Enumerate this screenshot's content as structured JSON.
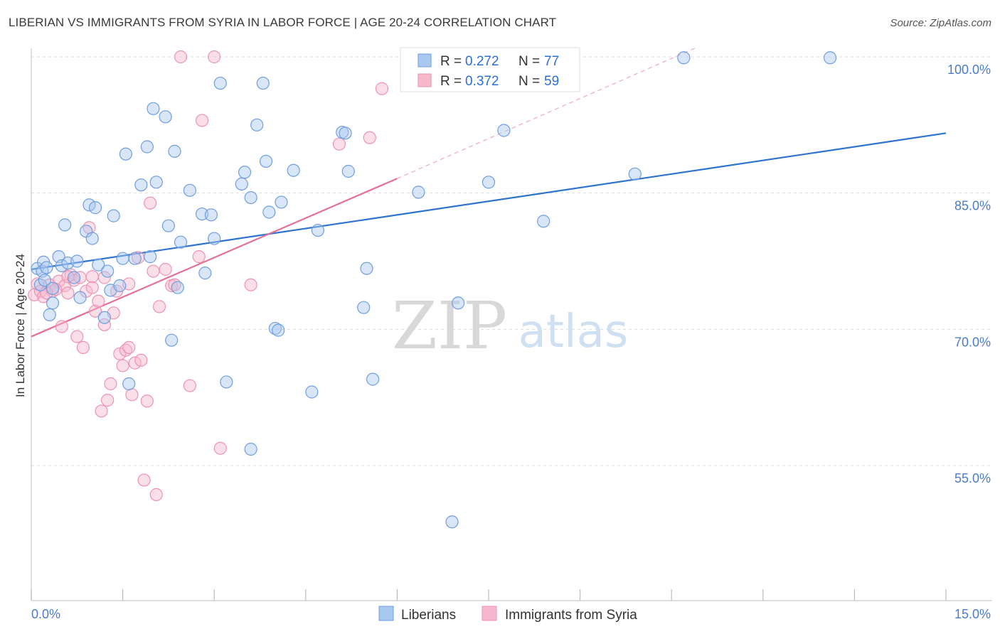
{
  "title": "LIBERIAN VS IMMIGRANTS FROM SYRIA IN LABOR FORCE | AGE 20-24 CORRELATION CHART",
  "source": "Source: ZipAtlas.com",
  "watermark": {
    "zip": "ZIP",
    "atlas": "atlas"
  },
  "colors": {
    "liberians_fill": "#a9c8f0",
    "liberians_stroke": "#6f9ee0",
    "liberians_line": "#2f73d0",
    "syria_fill": "#f6b9cc",
    "syria_stroke": "#ee93b0",
    "syria_line": "#e56f98",
    "tick_label": "#4a7cc7",
    "grid": "#dcdcdc"
  },
  "legend": {
    "r_label": "R =",
    "n_label": "N =",
    "rows": [
      {
        "r": "0.272",
        "n": "77"
      },
      {
        "r": "0.372",
        "n": "59"
      }
    ]
  },
  "bottom_legend": [
    "Liberians",
    "Immigrants from Syria"
  ],
  "chart_data": {
    "type": "scatter",
    "title": "LIBERIAN VS IMMIGRANTS FROM SYRIA IN LABOR FORCE | AGE 20-24 CORRELATION CHART",
    "xlabel": "",
    "ylabel": "In Labor Force | Age 20-24",
    "xlim": [
      0,
      15
    ],
    "ylim": [
      39.5,
      101.5
    ],
    "x_tick_labels": [
      "0.0%",
      "15.0%"
    ],
    "y_ticks": [
      55,
      70,
      85,
      100
    ],
    "y_tick_labels": [
      "55.0%",
      "70.0%",
      "85.0%",
      "100.0%"
    ],
    "grid": "horizontal dashed",
    "legend_position": "top-center",
    "series": [
      {
        "name": "Liberians",
        "r": 0.272,
        "n": 77,
        "trend": {
          "x": [
            0,
            15
          ],
          "y": [
            76.6,
            91.6
          ]
        },
        "points": [
          [
            0.1,
            76.7
          ],
          [
            0.15,
            74.9
          ],
          [
            0.18,
            76.4
          ],
          [
            0.2,
            77.4
          ],
          [
            0.25,
            76.8
          ],
          [
            0.3,
            71.6
          ],
          [
            0.35,
            72.9
          ],
          [
            0.45,
            78.0
          ],
          [
            0.5,
            77.0
          ],
          [
            0.55,
            81.5
          ],
          [
            0.6,
            77.3
          ],
          [
            0.7,
            75.7
          ],
          [
            0.75,
            77.5
          ],
          [
            0.8,
            73.5
          ],
          [
            0.9,
            80.8
          ],
          [
            0.95,
            83.7
          ],
          [
            1.0,
            80.0
          ],
          [
            1.05,
            83.4
          ],
          [
            1.1,
            77.1
          ],
          [
            1.2,
            71.3
          ],
          [
            1.25,
            76.4
          ],
          [
            1.3,
            74.3
          ],
          [
            1.35,
            82.5
          ],
          [
            1.45,
            74.8
          ],
          [
            1.5,
            77.8
          ],
          [
            1.55,
            89.3
          ],
          [
            1.6,
            64.0
          ],
          [
            1.7,
            77.8
          ],
          [
            1.8,
            85.9
          ],
          [
            1.9,
            90.1
          ],
          [
            1.95,
            78.0
          ],
          [
            2.0,
            94.3
          ],
          [
            2.05,
            86.2
          ],
          [
            2.2,
            93.4
          ],
          [
            2.25,
            81.4
          ],
          [
            2.3,
            68.8
          ],
          [
            2.35,
            89.6
          ],
          [
            2.4,
            74.6
          ],
          [
            2.45,
            79.6
          ],
          [
            2.6,
            85.3
          ],
          [
            2.8,
            82.7
          ],
          [
            2.85,
            76.2
          ],
          [
            2.95,
            82.6
          ],
          [
            3.0,
            80.0
          ],
          [
            3.1,
            97.1
          ],
          [
            3.2,
            64.2
          ],
          [
            3.45,
            86.0
          ],
          [
            3.5,
            87.3
          ],
          [
            3.6,
            84.5
          ],
          [
            3.7,
            92.5
          ],
          [
            3.8,
            97.1
          ],
          [
            3.85,
            88.5
          ],
          [
            3.9,
            82.9
          ],
          [
            4.0,
            70.1
          ],
          [
            4.05,
            69.9
          ],
          [
            4.1,
            84.0
          ],
          [
            4.3,
            87.5
          ],
          [
            4.6,
            63.1
          ],
          [
            4.7,
            80.9
          ],
          [
            5.1,
            91.7
          ],
          [
            5.15,
            91.6
          ],
          [
            5.2,
            87.4
          ],
          [
            5.45,
            72.4
          ],
          [
            5.5,
            76.7
          ],
          [
            5.6,
            64.5
          ],
          [
            6.35,
            85.1
          ],
          [
            6.9,
            48.8
          ],
          [
            7.0,
            72.9
          ],
          [
            7.5,
            86.2
          ],
          [
            7.75,
            91.9
          ],
          [
            8.4,
            81.9
          ],
          [
            9.9,
            87.1
          ],
          [
            10.7,
            99.9
          ],
          [
            13.1,
            99.9
          ],
          [
            0.22,
            75.4
          ],
          [
            3.6,
            56.8
          ],
          [
            0.35,
            74.5
          ]
        ]
      },
      {
        "name": "Immigrants from Syria",
        "r": 0.372,
        "n": 59,
        "trend": {
          "x": [
            0,
            6
          ],
          "y": [
            69.2,
            86.6
          ]
        },
        "trend_dashed": {
          "x": [
            6,
            10.9
          ],
          "y": [
            86.6,
            101.0
          ]
        },
        "points": [
          [
            0.05,
            73.8
          ],
          [
            0.1,
            75.0
          ],
          [
            0.15,
            74.2
          ],
          [
            0.2,
            73.6
          ],
          [
            0.3,
            74.9
          ],
          [
            0.35,
            74.2
          ],
          [
            0.45,
            75.3
          ],
          [
            0.5,
            70.3
          ],
          [
            0.55,
            74.8
          ],
          [
            0.6,
            74.0
          ],
          [
            0.65,
            76.0
          ],
          [
            0.7,
            75.4
          ],
          [
            0.75,
            69.2
          ],
          [
            0.8,
            75.7
          ],
          [
            0.85,
            68.0
          ],
          [
            0.9,
            74.2
          ],
          [
            0.95,
            81.2
          ],
          [
            1.0,
            74.6
          ],
          [
            1.05,
            72.0
          ],
          [
            1.1,
            73.1
          ],
          [
            1.15,
            61.0
          ],
          [
            1.2,
            75.7
          ],
          [
            1.3,
            64.0
          ],
          [
            1.35,
            71.8
          ],
          [
            1.4,
            74.2
          ],
          [
            1.45,
            67.3
          ],
          [
            1.5,
            66.0
          ],
          [
            1.55,
            67.7
          ],
          [
            1.6,
            75.0
          ],
          [
            1.65,
            62.8
          ],
          [
            1.7,
            66.3
          ],
          [
            1.75,
            77.9
          ],
          [
            1.8,
            66.6
          ],
          [
            1.85,
            53.4
          ],
          [
            1.9,
            62.1
          ],
          [
            1.95,
            83.9
          ],
          [
            2.0,
            76.4
          ],
          [
            2.05,
            51.8
          ],
          [
            2.1,
            72.5
          ],
          [
            2.2,
            76.6
          ],
          [
            2.3,
            74.8
          ],
          [
            2.6,
            63.8
          ],
          [
            2.75,
            78.0
          ],
          [
            2.8,
            93.0
          ],
          [
            3.1,
            56.9
          ],
          [
            3.0,
            100.0
          ],
          [
            2.45,
            100.0
          ],
          [
            3.6,
            74.9
          ],
          [
            5.05,
            90.4
          ],
          [
            5.55,
            91.1
          ],
          [
            5.75,
            96.5
          ],
          [
            1.2,
            70.5
          ],
          [
            0.4,
            74.4
          ],
          [
            1.0,
            75.8
          ],
          [
            1.25,
            62.2
          ],
          [
            0.25,
            74.0
          ],
          [
            1.6,
            68.0
          ],
          [
            2.35,
            74.9
          ],
          [
            0.6,
            75.8
          ]
        ]
      }
    ]
  }
}
